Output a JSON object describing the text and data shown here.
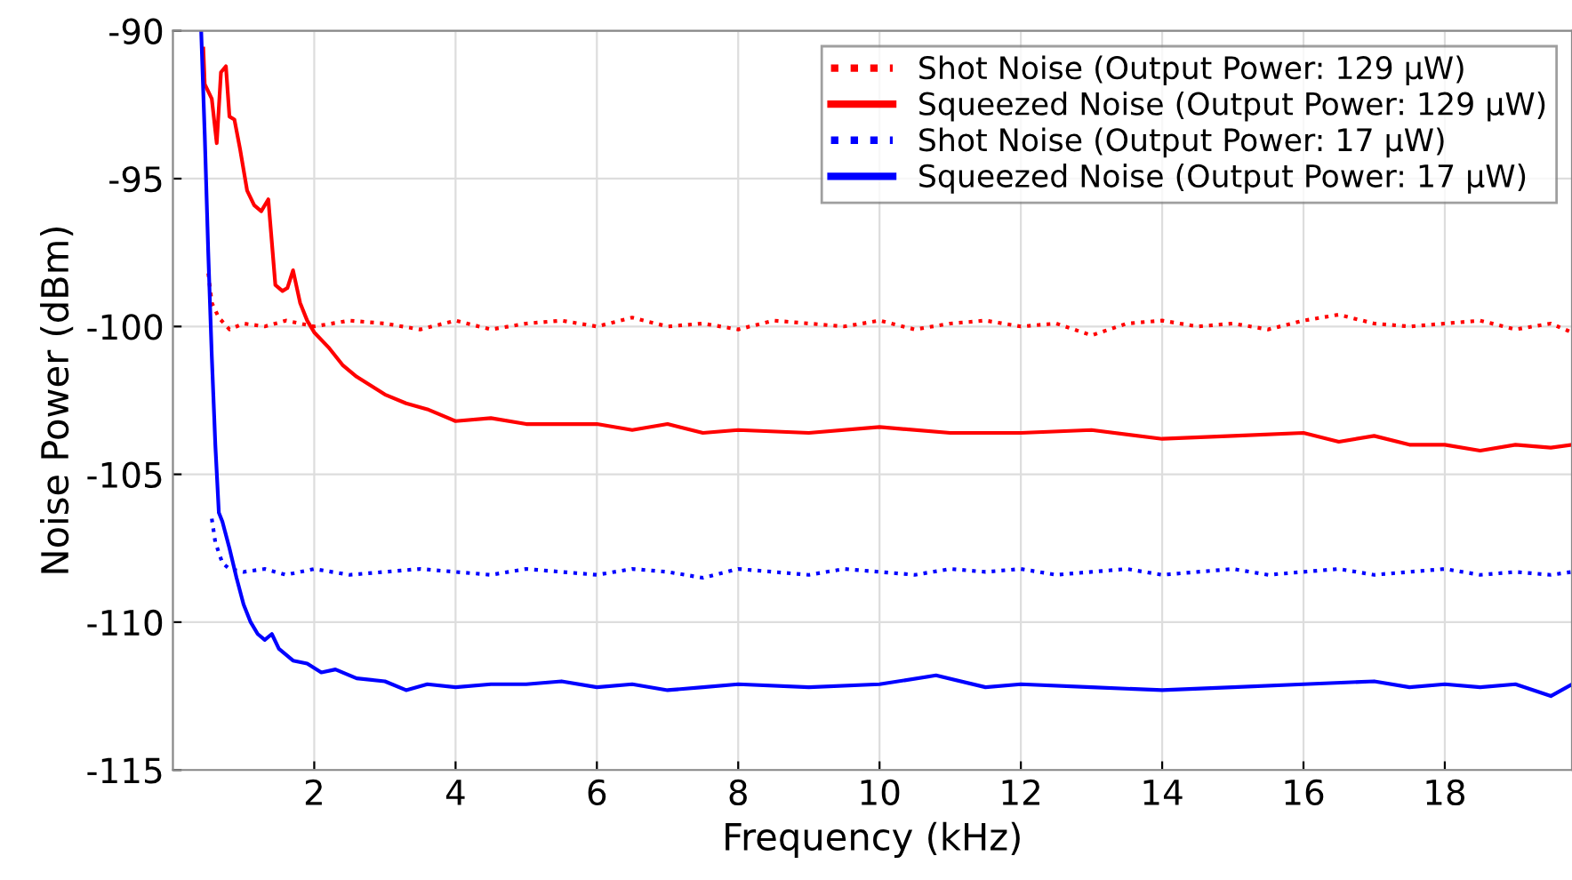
{
  "chart_data": {
    "type": "line",
    "xlabel": "Frequency (kHz)",
    "ylabel": "Noise Power (dBm)",
    "xlim": [
      0,
      19.8
    ],
    "ylim": [
      -115,
      -90
    ],
    "xticks": [
      2,
      4,
      6,
      8,
      10,
      12,
      14,
      16,
      18
    ],
    "yticks": [
      -115,
      -110,
      -105,
      -100,
      -95,
      -90
    ],
    "grid": true,
    "legend": "top right",
    "series": [
      {
        "name": "Shot Noise (Output Power: 129 μW)",
        "color": "#ff0000",
        "line_style": "dotted",
        "x": [
          0.5,
          0.55,
          0.65,
          0.8,
          1.0,
          1.3,
          1.6,
          2.0,
          2.5,
          3.0,
          3.5,
          4.0,
          4.5,
          5.0,
          5.5,
          6.0,
          6.5,
          7.0,
          7.5,
          8.0,
          8.5,
          9.0,
          9.5,
          10.0,
          10.5,
          11.0,
          11.5,
          12.0,
          12.5,
          13.0,
          13.5,
          14.0,
          14.5,
          15.0,
          15.5,
          16.0,
          16.5,
          17.0,
          17.5,
          18.0,
          18.5,
          19.0,
          19.5,
          19.8
        ],
        "values": [
          -98.2,
          -99.2,
          -99.7,
          -100.1,
          -99.9,
          -100.0,
          -99.8,
          -100.0,
          -99.8,
          -99.9,
          -100.1,
          -99.8,
          -100.1,
          -99.9,
          -99.8,
          -100.0,
          -99.7,
          -100.0,
          -99.9,
          -100.1,
          -99.8,
          -99.9,
          -100.0,
          -99.8,
          -100.1,
          -99.9,
          -99.8,
          -100.0,
          -99.9,
          -100.3,
          -99.9,
          -99.8,
          -100.0,
          -99.9,
          -100.1,
          -99.8,
          -99.6,
          -99.9,
          -100.0,
          -99.9,
          -99.8,
          -100.1,
          -99.9,
          -100.2
        ]
      },
      {
        "name": "Squeezed Noise (Output Power: 129 μW)",
        "color": "#ff0000",
        "line_style": "solid",
        "x": [
          0.43,
          0.45,
          0.55,
          0.62,
          0.68,
          0.75,
          0.8,
          0.87,
          0.95,
          1.05,
          1.15,
          1.25,
          1.35,
          1.45,
          1.55,
          1.62,
          1.7,
          1.8,
          1.9,
          2.0,
          2.2,
          2.4,
          2.6,
          2.8,
          3.0,
          3.3,
          3.6,
          4.0,
          4.5,
          5.0,
          5.5,
          6.0,
          6.5,
          7.0,
          7.5,
          8.0,
          9.0,
          10.0,
          11.0,
          12.0,
          13.0,
          14.0,
          15.0,
          16.0,
          16.5,
          17.0,
          17.5,
          18.0,
          18.5,
          19.0,
          19.5,
          19.8
        ],
        "values": [
          -90.6,
          -91.8,
          -92.3,
          -93.8,
          -91.4,
          -91.2,
          -92.9,
          -93.0,
          -94.0,
          -95.4,
          -95.9,
          -96.1,
          -95.7,
          -98.6,
          -98.8,
          -98.7,
          -98.1,
          -99.2,
          -99.8,
          -100.2,
          -100.7,
          -101.3,
          -101.7,
          -102.0,
          -102.3,
          -102.6,
          -102.8,
          -103.2,
          -103.1,
          -103.3,
          -103.3,
          -103.3,
          -103.5,
          -103.3,
          -103.6,
          -103.5,
          -103.6,
          -103.4,
          -103.6,
          -103.6,
          -103.5,
          -103.8,
          -103.7,
          -103.6,
          -103.9,
          -103.7,
          -104.0,
          -104.0,
          -104.2,
          -104.0,
          -104.1,
          -104.0
        ]
      },
      {
        "name": "Shot Noise (Output Power: 17 μW)",
        "color": "#0000ff",
        "line_style": "dotted",
        "x": [
          0.55,
          0.6,
          0.7,
          0.8,
          1.0,
          1.3,
          1.6,
          2.0,
          2.5,
          3.0,
          3.5,
          4.0,
          4.5,
          5.0,
          5.5,
          6.0,
          6.5,
          7.0,
          7.5,
          8.0,
          8.5,
          9.0,
          9.5,
          10.0,
          10.5,
          11.0,
          11.5,
          12.0,
          12.5,
          13.0,
          13.5,
          14.0,
          14.5,
          15.0,
          15.5,
          16.0,
          16.5,
          17.0,
          17.5,
          18.0,
          18.5,
          19.0,
          19.5,
          19.8
        ],
        "values": [
          -106.5,
          -107.3,
          -108.0,
          -108.2,
          -108.3,
          -108.2,
          -108.4,
          -108.2,
          -108.4,
          -108.3,
          -108.2,
          -108.3,
          -108.4,
          -108.2,
          -108.3,
          -108.4,
          -108.2,
          -108.3,
          -108.5,
          -108.2,
          -108.3,
          -108.4,
          -108.2,
          -108.3,
          -108.4,
          -108.2,
          -108.3,
          -108.2,
          -108.4,
          -108.3,
          -108.2,
          -108.4,
          -108.3,
          -108.2,
          -108.4,
          -108.3,
          -108.2,
          -108.4,
          -108.3,
          -108.2,
          -108.4,
          -108.3,
          -108.4,
          -108.3
        ]
      },
      {
        "name": "Squeezed Noise (Output Power: 17 μW)",
        "color": "#0000ff",
        "line_style": "solid",
        "x": [
          0.4,
          0.45,
          0.5,
          0.55,
          0.6,
          0.65,
          0.7,
          0.8,
          0.9,
          1.0,
          1.1,
          1.2,
          1.3,
          1.4,
          1.5,
          1.7,
          1.9,
          2.1,
          2.3,
          2.6,
          3.0,
          3.3,
          3.6,
          4.0,
          4.5,
          5.0,
          5.5,
          6.0,
          6.5,
          7.0,
          7.5,
          8.0,
          9.0,
          10.0,
          10.8,
          11.5,
          12.0,
          13.0,
          14.0,
          15.0,
          16.0,
          17.0,
          17.5,
          18.0,
          18.5,
          19.0,
          19.5,
          19.8
        ],
        "values": [
          -90,
          -93.5,
          -97.5,
          -101.0,
          -104.0,
          -106.3,
          -106.6,
          -107.5,
          -108.5,
          -109.4,
          -110.0,
          -110.4,
          -110.6,
          -110.4,
          -110.9,
          -111.3,
          -111.4,
          -111.7,
          -111.6,
          -111.9,
          -112.0,
          -112.3,
          -112.1,
          -112.2,
          -112.1,
          -112.1,
          -112.0,
          -112.2,
          -112.1,
          -112.3,
          -112.2,
          -112.1,
          -112.2,
          -112.1,
          -111.8,
          -112.2,
          -112.1,
          -112.2,
          -112.3,
          -112.2,
          -112.1,
          -112.0,
          -112.2,
          -112.1,
          -112.2,
          -112.1,
          -112.5,
          -112.1
        ]
      }
    ]
  }
}
